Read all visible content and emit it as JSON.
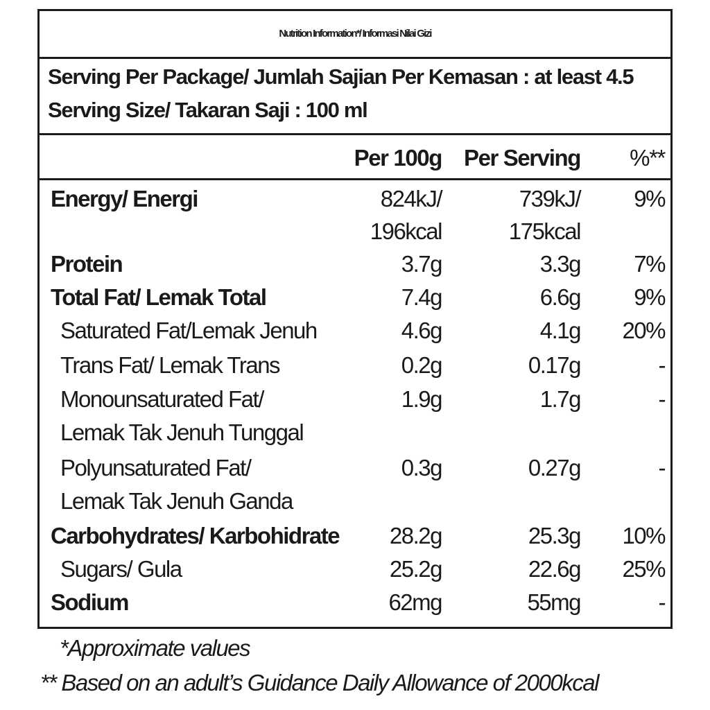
{
  "title": "Nutrition Information*/  Informasi Nilai Gizi",
  "serving": {
    "per_package": "Serving Per Package/ Jumlah Sajian Per Kemasan : at least 4.5",
    "size": "Serving Size/ Takaran Saji : 100 ml"
  },
  "columns": {
    "per100": "Per 100g",
    "per_serving": "Per Serving",
    "pct": "%**"
  },
  "nutrients": [
    {
      "label": "Energy/ Energi",
      "label2": "",
      "per100": "824kJ/",
      "per100_2": "196kcal",
      "serving": "739kJ/",
      "serving_2": "175kcal",
      "pct": "9%"
    },
    {
      "label": "Protein",
      "per100": "3.7g",
      "serving": "3.3g",
      "pct": "7%"
    },
    {
      "label": "Total Fat/ Lemak Total",
      "per100": "7.4g",
      "serving": "6.6g",
      "pct": "9%"
    },
    {
      "label": "Saturated Fat/Lemak Jenuh",
      "per100": "4.6g",
      "serving": "4.1g",
      "pct": "20%"
    },
    {
      "label": "Trans Fat/ Lemak Trans",
      "per100": "0.2g",
      "serving": "0.17g",
      "pct": "-"
    },
    {
      "label": "Monounsaturated Fat/",
      "label2": "Lemak Tak Jenuh Tunggal",
      "per100": "1.9g",
      "serving": "1.7g",
      "pct": "-"
    },
    {
      "label": "Polyunsaturated Fat/",
      "label2": "Lemak Tak Jenuh Ganda",
      "per100": "0.3g",
      "serving": "0.27g",
      "pct": "-"
    },
    {
      "label": "Carbohydrates/ Karbohidrate",
      "per100": "28.2g",
      "serving": "25.3g",
      "pct": "10%"
    },
    {
      "label": "Sugars/ Gula",
      "per100": "25.2g",
      "serving": "22.6g",
      "pct": "25%"
    },
    {
      "label": "Sodium",
      "per100": "62mg",
      "serving": "55mg",
      "pct": "-"
    }
  ],
  "footnotes": {
    "approx": "*Approximate values",
    "gda": "** Based on an adult’s Guidance Daily Allowance of 2000kcal"
  }
}
